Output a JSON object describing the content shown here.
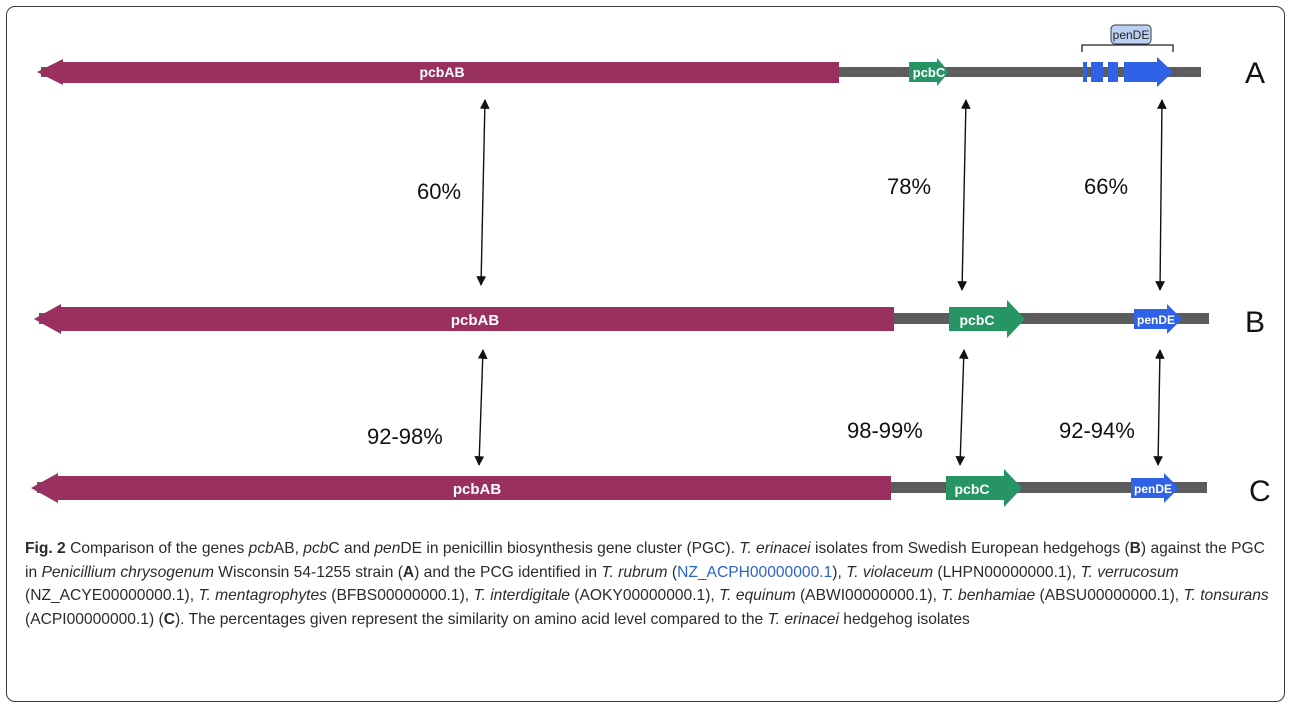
{
  "figure": {
    "rows": [
      {
        "id": "A",
        "label": "A",
        "genes": [
          {
            "name": "pcbAB",
            "label": "pcbAB",
            "color": "#99305f"
          },
          {
            "name": "pcbC",
            "label": "pcbC",
            "color": "#279464"
          },
          {
            "name": "penDE",
            "label": "",
            "color": "#2f62e6"
          }
        ],
        "bracket_label": "penDE"
      },
      {
        "id": "B",
        "label": "B",
        "genes": [
          {
            "name": "pcbAB",
            "label": "pcbAB",
            "color": "#99305f"
          },
          {
            "name": "pcbC",
            "label": "pcbC",
            "color": "#279464"
          },
          {
            "name": "penDE",
            "label": "penDE",
            "color": "#2f62e6"
          }
        ]
      },
      {
        "id": "C",
        "label": "C",
        "genes": [
          {
            "name": "pcbAB",
            "label": "pcbAB",
            "color": "#99305f"
          },
          {
            "name": "pcbC",
            "label": "pcbC",
            "color": "#279464"
          },
          {
            "name": "penDE",
            "label": "penDE",
            "color": "#2f62e6"
          }
        ]
      }
    ],
    "similarities": [
      {
        "between": "A-B",
        "gene": "pcbAB",
        "value": "60%"
      },
      {
        "between": "A-B",
        "gene": "pcbC",
        "value": "78%"
      },
      {
        "between": "A-B",
        "gene": "penDE",
        "value": "66%"
      },
      {
        "between": "B-C",
        "gene": "pcbAB",
        "value": "92-98%"
      },
      {
        "between": "B-C",
        "gene": "pcbC",
        "value": "98-99%"
      },
      {
        "between": "B-C",
        "gene": "penDE",
        "value": "92-94%"
      }
    ],
    "colors": {
      "backbone": "#5c5c5c",
      "pcbAB": "#99305f",
      "pcbC": "#279464",
      "penDE": "#2f62e6",
      "bracket_fill": "#bcd0f5"
    }
  },
  "caption": {
    "fig_label": "Fig. 2",
    "t1": " Comparison of the genes ",
    "g1": "pcb",
    "t2": "AB, ",
    "g2": "pcb",
    "t3": "C and ",
    "g3": "pen",
    "t4": "DE in penicillin biosynthesis gene cluster (PGC). ",
    "sp1": "T. erinacei",
    "t5": " isolates from Swedish European hedgehogs (",
    "b1": "B",
    "t6": ") against the PGC in ",
    "sp2": "Penicillium chrysogenum",
    "t7": " Wisconsin 54-1255 strain (",
    "b2": "A",
    "t8": ") and the PCG identified in ",
    "sp3": "T. rubrum",
    "t9": " (",
    "link1": "NZ_ACPH00000000.1",
    "t10": "), ",
    "sp4": "T. violaceum",
    "t11": " (LHPN00000000.1), ",
    "sp5": "T. verrucosum",
    "t12": " (NZ_ACYE00000000.1), ",
    "sp6": "T. mentagrophytes",
    "t13": " (BFBS00000000.1), ",
    "sp7": "T. interdigitale",
    "t14": " (AOKY00000000.1), ",
    "sp8": "T. equinum",
    "t15": " (ABWI00000000.1), ",
    "sp9": "T. benhamiae",
    "t16": " (ABSU00000000.1), ",
    "sp10": "T. tonsurans",
    "t17": " (ACPI00000000.1) (",
    "b3": "C",
    "t18": "). The percentages given represent the similarity on amino acid level compared to the ",
    "sp11": "T. erinacei",
    "t19": " hedgehog isolates"
  }
}
